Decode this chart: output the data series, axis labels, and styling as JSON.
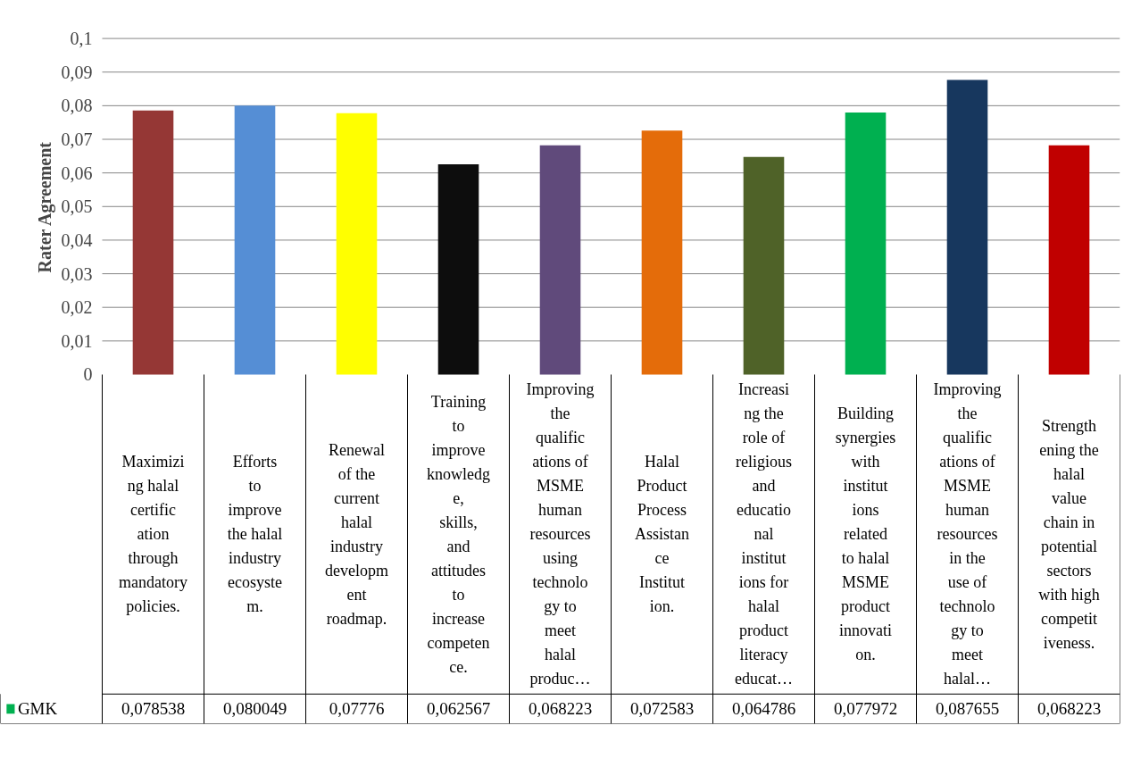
{
  "chart_data": {
    "type": "bar",
    "ylabel": "Rater Agreement",
    "categories": [
      "Maximizing halal certification through mandatory policies.",
      "Efforts to improve the halal industry ecosystem.",
      "Renewal of the current halal industry development roadmap.",
      "Training to improve knowledge, skills, and attitudes to increase competence.",
      "Improving the qualifications of MSME human resources using technology to meet halal produc…",
      "Halal Product Process Assistance Institution.",
      "Increasing the role of religious and educational institutions for halal product literacy educat…",
      "Building synergies with institutions related to halal MSME product innovation.",
      "Improving the qualifications of MSME human resources in the use of technology to meet halal…",
      "Strengthening the halal value chain in potential sectors with high competitiveness."
    ],
    "series": [
      {
        "name": "GMK",
        "color": "#00b050",
        "values": [
          0.078538,
          0.080049,
          0.07776,
          0.062567,
          0.068223,
          0.072583,
          0.064786,
          0.077972,
          0.087655,
          0.068223
        ],
        "value_labels": [
          "0,078538",
          "0,080049",
          "0,07776",
          "0,062567",
          "0,068223",
          "0,072583",
          "0,064786",
          "0,077972",
          "0,087655",
          "0,068223"
        ],
        "colors": [
          "#953735",
          "#558ed5",
          "#ffff00",
          "#0d0d0d",
          "#604a7b",
          "#e46c0a",
          "#4f6228",
          "#00b050",
          "#17375e",
          "#c00000"
        ]
      }
    ],
    "ylim": [
      0,
      0.1
    ],
    "yticks": [
      {
        "value": 0,
        "label": "0"
      },
      {
        "value": 0.01,
        "label": "0,01"
      },
      {
        "value": 0.02,
        "label": "0,02"
      },
      {
        "value": 0.03,
        "label": "0,03"
      },
      {
        "value": 0.04,
        "label": "0,04"
      },
      {
        "value": 0.05,
        "label": "0,05"
      },
      {
        "value": 0.06,
        "label": "0,06"
      },
      {
        "value": 0.07,
        "label": "0,07"
      },
      {
        "value": 0.08,
        "label": "0,08"
      },
      {
        "value": 0.09,
        "label": "0,09"
      },
      {
        "value": 0.1,
        "label": "0,1"
      }
    ],
    "grid": "y",
    "legend": "bottom left"
  }
}
